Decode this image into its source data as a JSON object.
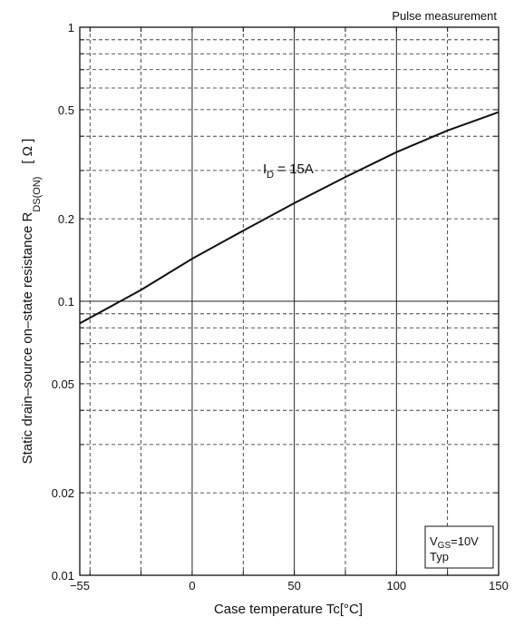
{
  "chart_data": {
    "type": "line",
    "title": "",
    "xlabel": "Case temperature  Tc[°C]",
    "ylabel_main": "Static drain–source on–state resistance  R",
    "ylabel_sub": "DS(ON)",
    "ylabel_unit": "[ Ω ]",
    "xlim": [
      -55,
      150
    ],
    "ylim": [
      0.01,
      1
    ],
    "yscale": "log",
    "grid": true,
    "x_ticks": [
      {
        "value": -55,
        "label": "−55"
      },
      {
        "value": 0,
        "label": "0"
      },
      {
        "value": 50,
        "label": "50"
      },
      {
        "value": 100,
        "label": "100"
      },
      {
        "value": 150,
        "label": "150"
      }
    ],
    "x_gridlines": [
      -55,
      -50,
      -25,
      0,
      25,
      50,
      75,
      100,
      125,
      150
    ],
    "x_major_gridlines": [
      0,
      50,
      100
    ],
    "y_ticks": [
      {
        "value": 1,
        "label": "1"
      },
      {
        "value": 0.5,
        "label": "0.5"
      },
      {
        "value": 0.2,
        "label": "0.2"
      },
      {
        "value": 0.1,
        "label": "0.1"
      },
      {
        "value": 0.05,
        "label": "0.05"
      },
      {
        "value": 0.02,
        "label": "0.02"
      },
      {
        "value": 0.01,
        "label": "0.01"
      }
    ],
    "y_gridlines": [
      0.02,
      0.03,
      0.04,
      0.05,
      0.06,
      0.07,
      0.08,
      0.09,
      0.2,
      0.3,
      0.4,
      0.5,
      0.6,
      0.7,
      0.8,
      0.9
    ],
    "y_major_gridlines": [
      0.1
    ],
    "series": [
      {
        "name": "I_D = 15A",
        "x": [
          -55,
          -25,
          0,
          25,
          50,
          75,
          100,
          125,
          150
        ],
        "y": [
          0.083,
          0.11,
          0.143,
          0.181,
          0.228,
          0.284,
          0.35,
          0.42,
          0.49
        ]
      }
    ],
    "annotations": {
      "header_note": "Pulse measurement",
      "curve_label_main": "I",
      "curve_label_sub": "D",
      "curve_label_rest": " = 15A",
      "condition_line1_main": "V",
      "condition_line1_sub": "GS",
      "condition_line1_rest": "=10V",
      "condition_line2": "Typ"
    }
  }
}
